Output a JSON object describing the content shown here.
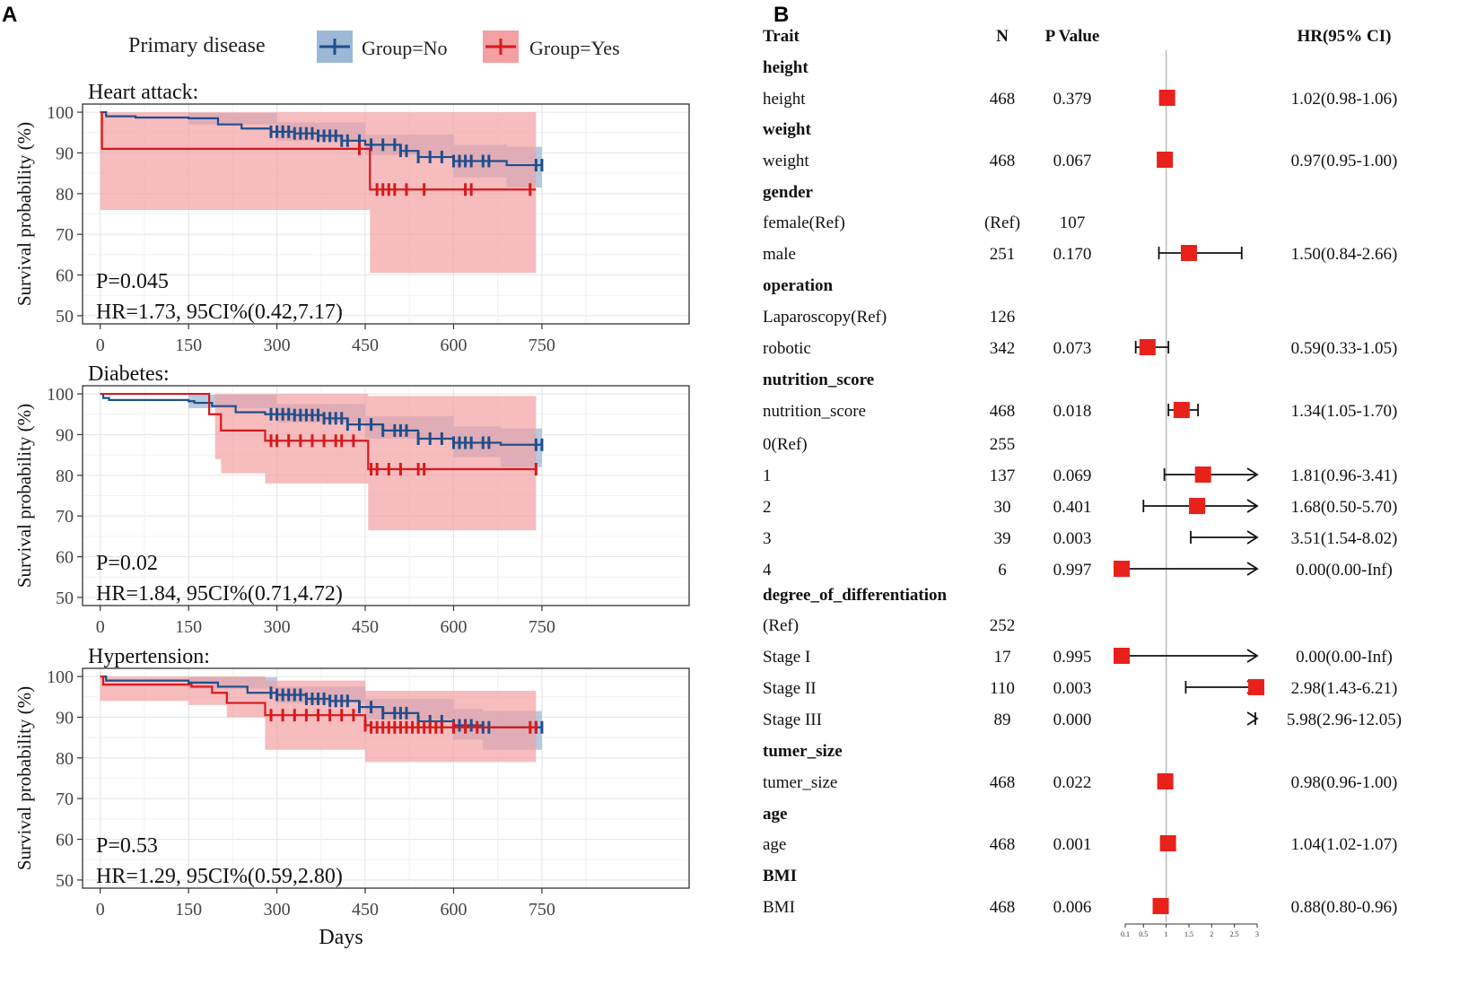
{
  "panel_a_label": "A",
  "panel_b_label": "B",
  "legend": {
    "title": "Primary disease",
    "entries": [
      {
        "label": "Group=No",
        "color": "#1f4e8c",
        "fill": "#9db8d6"
      },
      {
        "label": "Group=Yes",
        "color": "#d7191c",
        "fill": "#f2a0a2"
      }
    ]
  },
  "chart_data": [
    {
      "type": "line",
      "title": "Heart attack:",
      "xlabel": "",
      "ylabel": "Survival probability (%)",
      "xlim": [
        -30,
        1000
      ],
      "ylim": [
        48,
        102
      ],
      "xticks": [
        0,
        150,
        300,
        450,
        600,
        750
      ],
      "yticks": [
        50,
        60,
        70,
        80,
        90,
        100
      ],
      "grid": true,
      "annotations": [
        "P=0.045",
        "HR=1.73, 95CI%(0.42,7.17)"
      ],
      "series": [
        {
          "name": "Group=No",
          "steps": [
            [
              0,
              100
            ],
            [
              10,
              99
            ],
            [
              60,
              98.7
            ],
            [
              150,
              98.5
            ],
            [
              200,
              97
            ],
            [
              240,
              96
            ],
            [
              290,
              95.2
            ],
            [
              330,
              94.8
            ],
            [
              370,
              94.2
            ],
            [
              410,
              93
            ],
            [
              450,
              92
            ],
            [
              510,
              90.5
            ],
            [
              540,
              89
            ],
            [
              600,
              88
            ],
            [
              690,
              87
            ]
          ],
          "end": 750,
          "lower": [
            [
              0,
              100
            ],
            [
              150,
              97
            ],
            [
              300,
              93
            ],
            [
              450,
              89.5
            ],
            [
              600,
              84
            ],
            [
              690,
              81.5
            ]
          ],
          "upper": [
            [
              0,
              100
            ],
            [
              150,
              99.8
            ],
            [
              300,
              97.5
            ],
            [
              450,
              94.5
            ],
            [
              600,
              92
            ],
            [
              690,
              91.5
            ]
          ],
          "censor": [
            290,
            300,
            310,
            320,
            330,
            340,
            350,
            360,
            370,
            380,
            390,
            400,
            410,
            420,
            440,
            460,
            480,
            500,
            510,
            520,
            540,
            560,
            580,
            600,
            610,
            620,
            630,
            650,
            660,
            740,
            750
          ]
        },
        {
          "name": "Group=Yes",
          "steps": [
            [
              0,
              100
            ],
            [
              3,
              91
            ],
            [
              458,
              81
            ]
          ],
          "end": 740,
          "lower": [
            [
              0,
              76
            ],
            [
              458,
              60.5
            ]
          ],
          "upper": [
            [
              0,
              100
            ],
            [
              458,
              100
            ]
          ],
          "censor": [
            440,
            470,
            480,
            490,
            500,
            520,
            550,
            620,
            630,
            730
          ]
        }
      ]
    },
    {
      "type": "line",
      "title": "Diabetes:",
      "xlabel": "",
      "ylabel": "Survival probability (%)",
      "xlim": [
        -30,
        1000
      ],
      "ylim": [
        48,
        102
      ],
      "xticks": [
        0,
        150,
        300,
        450,
        600,
        750
      ],
      "yticks": [
        50,
        60,
        70,
        80,
        90,
        100
      ],
      "grid": true,
      "annotations": [
        "P=0.02",
        "HR=1.84, 95CI%(0.71,4.72)"
      ],
      "series": [
        {
          "name": "Group=No",
          "steps": [
            [
              0,
              100
            ],
            [
              5,
              99
            ],
            [
              15,
              98.5
            ],
            [
              150,
              98.2
            ],
            [
              160,
              97.8
            ],
            [
              190,
              97
            ],
            [
              230,
              95.5
            ],
            [
              280,
              95
            ],
            [
              330,
              94.8
            ],
            [
              380,
              94
            ],
            [
              420,
              92.5
            ],
            [
              480,
              91
            ],
            [
              540,
              89
            ],
            [
              600,
              88
            ],
            [
              680,
              87.5
            ]
          ],
          "end": 750,
          "lower": [
            [
              0,
              100
            ],
            [
              150,
              96.5
            ],
            [
              300,
              93
            ],
            [
              450,
              89
            ],
            [
              600,
              84.5
            ],
            [
              680,
              82
            ]
          ],
          "upper": [
            [
              0,
              100
            ],
            [
              150,
              99.8
            ],
            [
              300,
              97.5
            ],
            [
              450,
              94.5
            ],
            [
              600,
              92
            ],
            [
              680,
              91.5
            ]
          ],
          "censor": [
            290,
            300,
            310,
            320,
            330,
            340,
            350,
            360,
            370,
            380,
            390,
            400,
            410,
            420,
            440,
            460,
            480,
            500,
            510,
            520,
            540,
            560,
            580,
            600,
            610,
            620,
            630,
            650,
            660,
            740,
            750
          ]
        },
        {
          "name": "Group=Yes",
          "steps": [
            [
              0,
              100
            ],
            [
              185,
              95
            ],
            [
              205,
              91
            ],
            [
              280,
              88.5
            ],
            [
              455,
              81.5
            ]
          ],
          "end": 740,
          "lower": [
            [
              0,
              100
            ],
            [
              195,
              84
            ],
            [
              205,
              80.5
            ],
            [
              280,
              78
            ],
            [
              455,
              66.5
            ]
          ],
          "upper": [
            [
              0,
              100
            ],
            [
              185,
              100
            ],
            [
              205,
              100
            ],
            [
              455,
              99.5
            ]
          ],
          "censor": [
            290,
            300,
            320,
            340,
            360,
            380,
            400,
            410,
            430,
            460,
            470,
            490,
            510,
            540,
            550,
            740
          ]
        }
      ]
    },
    {
      "type": "line",
      "title": "Hypertension:",
      "xlabel": "Days",
      "ylabel": "Survival probability (%)",
      "xlim": [
        -30,
        1000
      ],
      "ylim": [
        48,
        102
      ],
      "xticks": [
        0,
        150,
        300,
        450,
        600,
        750
      ],
      "yticks": [
        50,
        60,
        70,
        80,
        90,
        100
      ],
      "grid": true,
      "annotations": [
        "P=0.53",
        "HR=1.29, 95CI%(0.59,2.80)"
      ],
      "series": [
        {
          "name": "Group=No",
          "steps": [
            [
              0,
              100
            ],
            [
              10,
              99
            ],
            [
              150,
              98.5
            ],
            [
              200,
              97.5
            ],
            [
              250,
              96
            ],
            [
              300,
              95.5
            ],
            [
              350,
              94.5
            ],
            [
              390,
              94
            ],
            [
              440,
              92.5
            ],
            [
              480,
              91
            ],
            [
              540,
              89
            ],
            [
              600,
              88
            ],
            [
              650,
              87.5
            ]
          ],
          "end": 750,
          "lower": [
            [
              0,
              100
            ],
            [
              150,
              97
            ],
            [
              300,
              93.5
            ],
            [
              450,
              89.5
            ],
            [
              600,
              84.5
            ],
            [
              650,
              82
            ]
          ],
          "upper": [
            [
              0,
              100
            ],
            [
              150,
              99.8
            ],
            [
              300,
              97.5
            ],
            [
              450,
              94.5
            ],
            [
              600,
              92
            ],
            [
              650,
              91.5
            ]
          ],
          "censor": [
            290,
            300,
            310,
            320,
            330,
            340,
            350,
            360,
            370,
            380,
            390,
            400,
            410,
            420,
            440,
            460,
            480,
            500,
            510,
            520,
            540,
            560,
            580,
            600,
            610,
            620,
            630,
            650,
            660,
            740,
            750
          ]
        },
        {
          "name": "Group=Yes",
          "steps": [
            [
              0,
              100
            ],
            [
              5,
              98
            ],
            [
              155,
              97.5
            ],
            [
              190,
              96
            ],
            [
              215,
              93.5
            ],
            [
              280,
              90.5
            ],
            [
              450,
              88
            ],
            [
              460,
              87.5
            ]
          ],
          "end": 740,
          "lower": [
            [
              0,
              94
            ],
            [
              150,
              93
            ],
            [
              215,
              90
            ],
            [
              280,
              82
            ],
            [
              450,
              79
            ]
          ],
          "upper": [
            [
              0,
              100
            ],
            [
              280,
              99
            ],
            [
              450,
              96.5
            ]
          ],
          "censor": [
            290,
            310,
            330,
            350,
            370,
            390,
            410,
            430,
            450,
            460,
            470,
            480,
            490,
            500,
            510,
            520,
            530,
            540,
            550,
            560,
            570,
            580,
            600,
            620,
            640,
            730,
            740
          ]
        }
      ]
    },
    {
      "type": "forest",
      "headers": {
        "trait": "Trait",
        "n": "N",
        "p": "P Value",
        "hr": "HR(95% CI)"
      },
      "axis_ticks": [
        0.1,
        0.5,
        1,
        1.5,
        2,
        2.5,
        3
      ],
      "reference_line": 1,
      "rows": [
        {
          "trait": "height",
          "header": true
        },
        {
          "trait": "height",
          "n": "468",
          "p": "0.379",
          "hr": "1.02(0.98-1.06)",
          "est": 1.02,
          "lo": 0.98,
          "hi": 1.06
        },
        {
          "trait": "weight",
          "header": true
        },
        {
          "trait": "weight",
          "n": "468",
          "p": "0.067",
          "hr": "0.97(0.95-1.00)",
          "est": 0.97,
          "lo": 0.95,
          "hi": 1.0
        },
        {
          "trait": "gender",
          "header": true
        },
        {
          "trait": "female(Ref)",
          "n": "(Ref)",
          "p": "107",
          "hr": ""
        },
        {
          "trait": "male",
          "n": "251",
          "p": "0.170",
          "hr": "1.50(0.84-2.66)",
          "est": 1.5,
          "lo": 0.84,
          "hi": 2.66
        },
        {
          "trait": "operation",
          "header": true
        },
        {
          "trait": "Laparoscopy(Ref)",
          "n": "126",
          "p": "",
          "hr": ""
        },
        {
          "trait": "robotic",
          "n": "342",
          "p": "0.073",
          "hr": "0.59(0.33-1.05)",
          "est": 0.59,
          "lo": 0.33,
          "hi": 1.05
        },
        {
          "trait": "nutrition_score",
          "header": true
        },
        {
          "trait": "nutrition_score",
          "n": "468",
          "p": "0.018",
          "hr": "1.34(1.05-1.70)",
          "est": 1.34,
          "lo": 1.05,
          "hi": 1.7
        },
        {
          "trait": "0(Ref)",
          "n": "255",
          "p": "",
          "hr": ""
        },
        {
          "trait": "1",
          "n": "137",
          "p": "0.069",
          "hr": "1.81(0.96-3.41)",
          "est": 1.81,
          "lo": 0.96,
          "hi": 3.41
        },
        {
          "trait": "2",
          "n": "30",
          "p": "0.401",
          "hr": "1.68(0.50-5.70)",
          "est": 1.68,
          "lo": 0.5,
          "hi": 5.7
        },
        {
          "trait": "3",
          "n": "39",
          "p": "0.003",
          "hr": "3.51(1.54-8.02)",
          "est": 3.51,
          "lo": 1.54,
          "hi": 8.02
        },
        {
          "trait": "4",
          "n": "6",
          "p": "0.997",
          "hr": "0.00(0.00-Inf)",
          "est": 0.0,
          "lo": 0.0,
          "hi": "Inf"
        },
        {
          "trait": "degree_of_differentiation",
          "header": true
        },
        {
          "trait": "(Ref)",
          "n": "252",
          "p": "",
          "hr": ""
        },
        {
          "trait": "Stage I",
          "n": "17",
          "p": "0.995",
          "hr": "0.00(0.00-Inf)",
          "est": 0.0,
          "lo": 0.0,
          "hi": "Inf"
        },
        {
          "trait": "Stage II",
          "n": "110",
          "p": "0.003",
          "hr": "2.98(1.43-6.21)",
          "est": 2.98,
          "lo": 1.43,
          "hi": 6.21
        },
        {
          "trait": "Stage III",
          "n": "89",
          "p": "0.000",
          "hr": "5.98(2.96-12.05)",
          "est": 5.98,
          "lo": 2.96,
          "hi": 12.05
        },
        {
          "trait": "tumer_size",
          "header": true
        },
        {
          "trait": "tumer_size",
          "n": "468",
          "p": "0.022",
          "hr": "0.98(0.96-1.00)",
          "est": 0.98,
          "lo": 0.96,
          "hi": 1.0
        },
        {
          "trait": "age",
          "header": true
        },
        {
          "trait": "age",
          "n": "468",
          "p": "0.001",
          "hr": "1.04(1.02-1.07)",
          "est": 1.04,
          "lo": 1.02,
          "hi": 1.07
        },
        {
          "trait": "BMI",
          "header": true
        },
        {
          "trait": "BMI",
          "n": "468",
          "p": "0.006",
          "hr": "0.88(0.80-0.96)",
          "est": 0.88,
          "lo": 0.8,
          "hi": 0.96
        }
      ]
    }
  ]
}
